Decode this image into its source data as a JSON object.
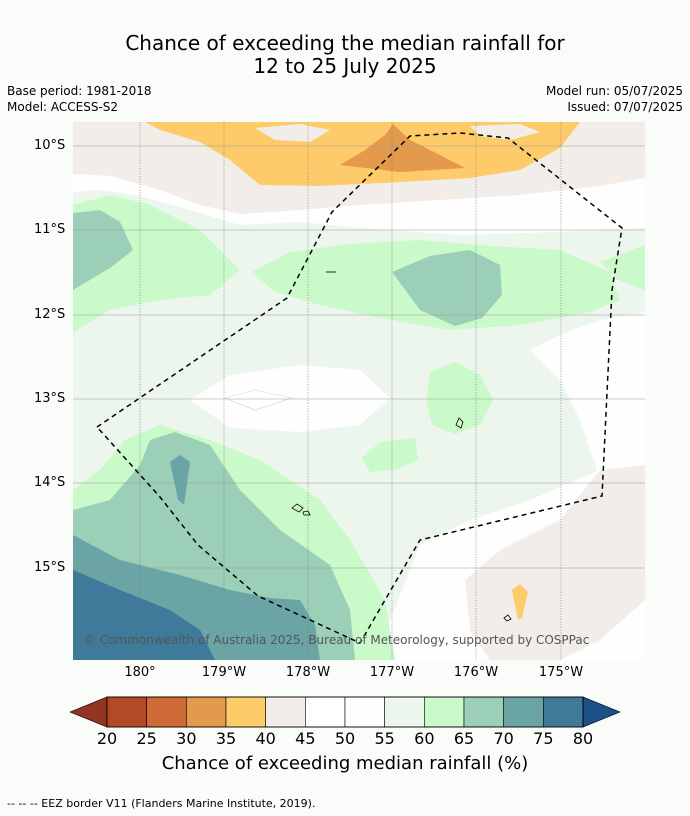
{
  "title": {
    "line1": "Chance of exceeding the median rainfall for",
    "line2": "12 to 25 July 2025"
  },
  "meta": {
    "base_period": "Base period: 1981-2018",
    "model": "Model: ACCESS-S2",
    "model_run": "Model run: 05/07/2025",
    "issued": "Issued: 07/07/2025"
  },
  "map": {
    "lat_labels": [
      "10°S",
      "11°S",
      "12°S",
      "13°S",
      "14°S",
      "15°S"
    ],
    "lon_labels": [
      "180°",
      "179°W",
      "178°W",
      "177°W",
      "176°W",
      "175°W"
    ],
    "credit": "© Commonwealth of Australia 2025, Bureau of Meteorology, supported by COSPPac"
  },
  "colorbar": {
    "ticks": [
      "20",
      "25",
      "30",
      "35",
      "40",
      "45",
      "50",
      "55",
      "60",
      "65",
      "70",
      "75",
      "80"
    ],
    "colors": [
      "#b14a26",
      "#cd6a35",
      "#e39a4c",
      "#fecb6a",
      "#f2ede8",
      "#ffffff",
      "#fdfefd",
      "#ecf6ec",
      "#caf9ca",
      "#9bcfb8",
      "#6ba4a5",
      "#3f7a9b"
    ],
    "under_color": "#913522",
    "over_color": "#1c4f86",
    "label": "Chance of exceeding median rainfall (%)"
  },
  "footnote": "--  --  -- EEZ border V11 (Flanders Marine Institute, 2019)."
}
